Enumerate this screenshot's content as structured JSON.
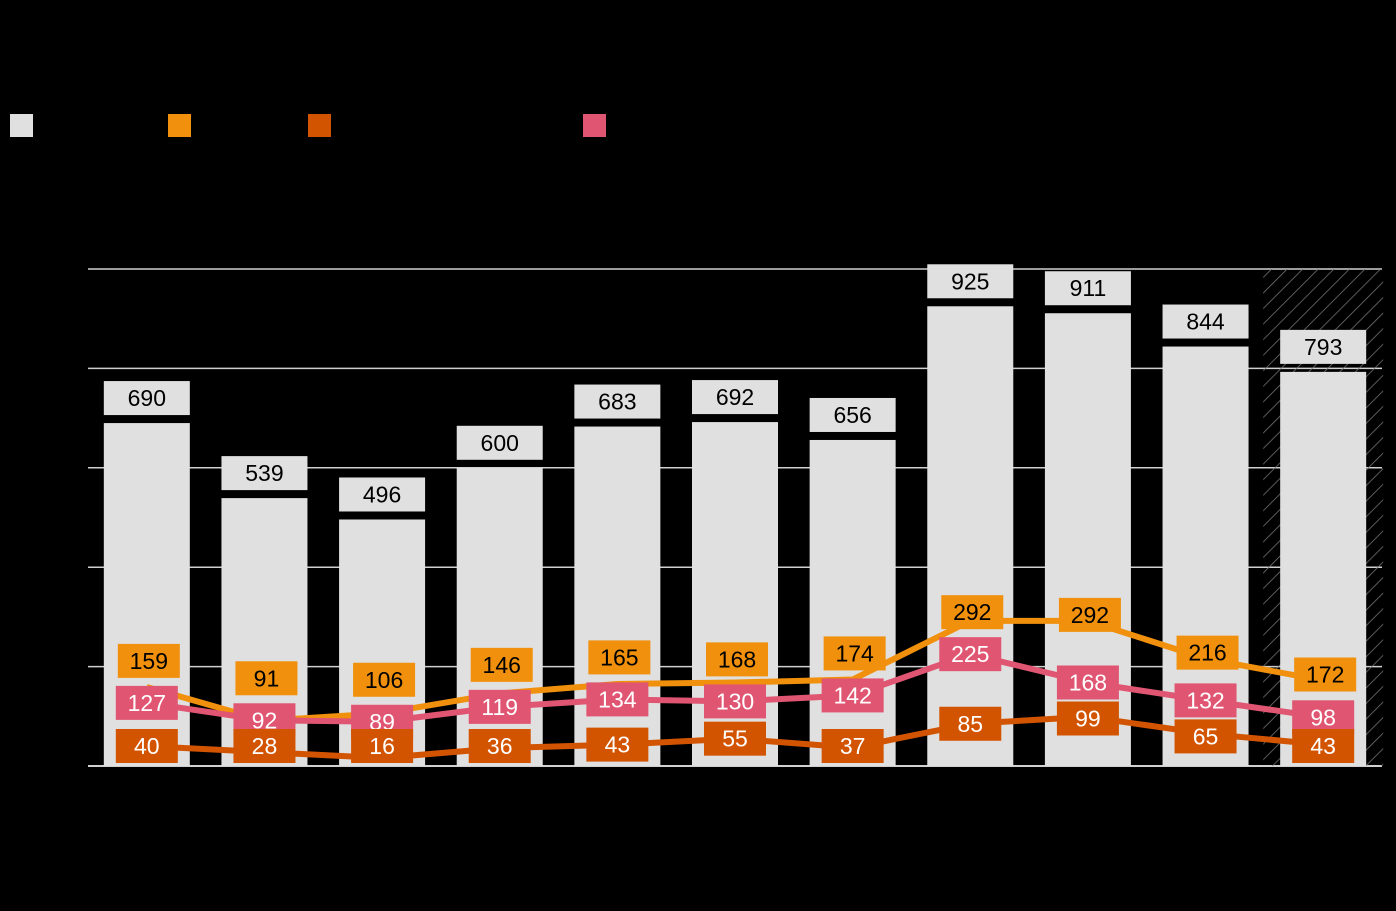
{
  "chart_data": {
    "type": "bar",
    "title": "",
    "xlabel": "",
    "ylabel": "",
    "ylim": [
      0,
      1000
    ],
    "grid": true,
    "categories": [
      "",
      "",
      "",
      "",
      "",
      "",
      "",
      "",
      "",
      "",
      ""
    ],
    "bars": {
      "name": "",
      "color": "#e0e0e0",
      "values": [
        690,
        539,
        496,
        600,
        683,
        692,
        656,
        925,
        911,
        844,
        793
      ],
      "hatched_last": true
    },
    "series": [
      {
        "name": "",
        "type": "line",
        "color": "#f0900c",
        "values": [
          159,
          91,
          106,
          146,
          165,
          168,
          174,
          292,
          292,
          216,
          172
        ]
      },
      {
        "name": "",
        "type": "line",
        "color": "#e05672",
        "values": [
          127,
          92,
          89,
          119,
          134,
          130,
          142,
          225,
          168,
          132,
          98
        ]
      },
      {
        "name": "",
        "type": "line",
        "color": "#d35400",
        "values": [
          40,
          28,
          16,
          36,
          43,
          55,
          37,
          85,
          99,
          65,
          43
        ]
      }
    ]
  },
  "legend": [
    {
      "label": "",
      "color": "#e0e0e0"
    },
    {
      "label": "",
      "color": "#f0900c"
    },
    {
      "label": "",
      "color": "#d35400"
    },
    {
      "label": "",
      "color": "#e05672"
    }
  ]
}
